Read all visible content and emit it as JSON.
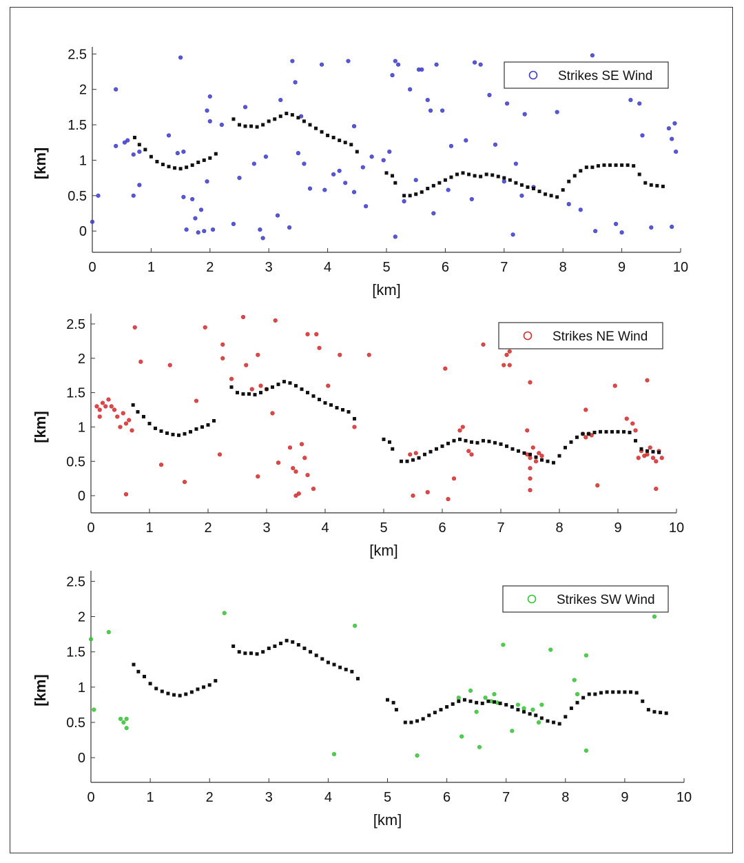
{
  "chart_data": [
    {
      "type": "scatter",
      "xlabel": "[km]",
      "ylabel": "[km]",
      "xlim": [
        0,
        10
      ],
      "ylim": [
        -0.3,
        2.6
      ],
      "xticks": [
        "0",
        "1",
        "2",
        "3",
        "4",
        "5",
        "6",
        "7",
        "8",
        "9",
        "10"
      ],
      "yticks": [
        "0",
        "0.5",
        "1",
        "1.5",
        "2",
        "2.5"
      ],
      "legend": {
        "label": "Strikes SE Wind",
        "position": "top-right",
        "color": "#3b3bc8"
      },
      "strike_color": "#3b3bc8",
      "strikes": [
        [
          0.0,
          0.13
        ],
        [
          0.1,
          0.5
        ],
        [
          0.4,
          2.0
        ],
        [
          0.4,
          1.2
        ],
        [
          0.55,
          1.25
        ],
        [
          0.6,
          1.28
        ],
        [
          0.7,
          0.5
        ],
        [
          0.7,
          1.08
        ],
        [
          0.8,
          0.65
        ],
        [
          0.8,
          1.12
        ],
        [
          1.3,
          1.35
        ],
        [
          1.45,
          1.1
        ],
        [
          1.5,
          2.45
        ],
        [
          1.55,
          1.12
        ],
        [
          1.55,
          0.48
        ],
        [
          1.6,
          0.02
        ],
        [
          1.7,
          0.45
        ],
        [
          1.75,
          0.18
        ],
        [
          1.8,
          -0.02
        ],
        [
          1.85,
          0.3
        ],
        [
          1.9,
          0.0
        ],
        [
          1.95,
          0.7
        ],
        [
          1.95,
          1.7
        ],
        [
          2.0,
          1.55
        ],
        [
          2.0,
          1.9
        ],
        [
          2.05,
          0.02
        ],
        [
          2.2,
          1.5
        ],
        [
          2.4,
          0.1
        ],
        [
          2.5,
          0.75
        ],
        [
          2.6,
          1.75
        ],
        [
          2.75,
          0.95
        ],
        [
          2.85,
          0.02
        ],
        [
          2.9,
          -0.1
        ],
        [
          2.95,
          1.05
        ],
        [
          3.15,
          0.22
        ],
        [
          3.2,
          1.85
        ],
        [
          3.35,
          0.05
        ],
        [
          3.4,
          2.4
        ],
        [
          3.45,
          2.1
        ],
        [
          3.5,
          1.1
        ],
        [
          3.55,
          1.62
        ],
        [
          3.6,
          0.95
        ],
        [
          3.7,
          0.6
        ],
        [
          3.9,
          2.35
        ],
        [
          3.95,
          0.58
        ],
        [
          4.1,
          0.8
        ],
        [
          4.2,
          0.85
        ],
        [
          4.3,
          0.68
        ],
        [
          4.35,
          2.4
        ],
        [
          4.45,
          0.55
        ],
        [
          4.45,
          1.48
        ],
        [
          4.6,
          0.9
        ],
        [
          4.65,
          0.35
        ],
        [
          4.75,
          1.05
        ],
        [
          4.95,
          1.0
        ],
        [
          5.05,
          1.12
        ],
        [
          5.1,
          2.2
        ],
        [
          5.15,
          -0.08
        ],
        [
          5.15,
          2.4
        ],
        [
          5.2,
          2.35
        ],
        [
          5.3,
          0.42
        ],
        [
          5.4,
          2.0
        ],
        [
          5.5,
          0.72
        ],
        [
          5.55,
          2.28
        ],
        [
          5.6,
          2.28
        ],
        [
          5.7,
          1.85
        ],
        [
          5.75,
          1.7
        ],
        [
          5.8,
          0.25
        ],
        [
          5.85,
          2.35
        ],
        [
          5.95,
          1.7
        ],
        [
          6.05,
          0.58
        ],
        [
          6.1,
          1.2
        ],
        [
          6.35,
          1.28
        ],
        [
          6.45,
          0.45
        ],
        [
          6.5,
          2.38
        ],
        [
          6.6,
          2.35
        ],
        [
          6.75,
          1.92
        ],
        [
          6.85,
          1.22
        ],
        [
          7.0,
          0.7
        ],
        [
          7.05,
          1.8
        ],
        [
          7.15,
          -0.05
        ],
        [
          7.2,
          0.95
        ],
        [
          7.3,
          0.5
        ],
        [
          7.35,
          1.65
        ],
        [
          7.5,
          0.62
        ],
        [
          7.65,
          2.2
        ],
        [
          7.9,
          1.68
        ],
        [
          8.1,
          0.38
        ],
        [
          8.2,
          2.35
        ],
        [
          8.3,
          0.3
        ],
        [
          8.5,
          2.48
        ],
        [
          8.55,
          0.0
        ],
        [
          8.9,
          0.1
        ],
        [
          9.0,
          -0.02
        ],
        [
          9.15,
          1.85
        ],
        [
          9.3,
          1.8
        ],
        [
          9.35,
          1.35
        ],
        [
          9.5,
          0.05
        ],
        [
          9.8,
          1.45
        ],
        [
          9.85,
          1.3
        ],
        [
          9.85,
          0.06
        ],
        [
          9.9,
          1.52
        ],
        [
          9.92,
          1.12
        ]
      ]
    },
    {
      "type": "scatter",
      "xlabel": "[km]",
      "ylabel": "[km]",
      "xlim": [
        0,
        10
      ],
      "ylim": [
        -0.25,
        2.65
      ],
      "xticks": [
        "0",
        "1",
        "2",
        "3",
        "4",
        "5",
        "6",
        "7",
        "8",
        "9",
        "10"
      ],
      "yticks": [
        "0",
        "0.5",
        "1",
        "1.5",
        "2",
        "2.5"
      ],
      "legend": {
        "label": "Strikes NE Wind",
        "position": "top-right",
        "color": "#d22a2a"
      },
      "strike_color": "#d22a2a",
      "strikes": [
        [
          0.1,
          1.3
        ],
        [
          0.15,
          1.25
        ],
        [
          0.15,
          1.15
        ],
        [
          0.2,
          1.35
        ],
        [
          0.25,
          1.3
        ],
        [
          0.3,
          1.4
        ],
        [
          0.35,
          1.3
        ],
        [
          0.4,
          1.25
        ],
        [
          0.45,
          1.15
        ],
        [
          0.5,
          1.0
        ],
        [
          0.55,
          1.2
        ],
        [
          0.6,
          1.05
        ],
        [
          0.65,
          1.1
        ],
        [
          0.7,
          0.95
        ],
        [
          0.6,
          0.02
        ],
        [
          0.75,
          2.45
        ],
        [
          0.85,
          1.95
        ],
        [
          1.2,
          0.45
        ],
        [
          1.35,
          1.9
        ],
        [
          1.6,
          0.2
        ],
        [
          1.8,
          1.38
        ],
        [
          1.95,
          2.45
        ],
        [
          2.2,
          0.6
        ],
        [
          2.25,
          2.0
        ],
        [
          2.25,
          2.2
        ],
        [
          2.4,
          1.7
        ],
        [
          2.6,
          2.6
        ],
        [
          2.65,
          1.9
        ],
        [
          2.75,
          1.55
        ],
        [
          2.85,
          2.05
        ],
        [
          2.85,
          0.28
        ],
        [
          2.9,
          1.6
        ],
        [
          3.0,
          1.55
        ],
        [
          3.1,
          1.2
        ],
        [
          3.15,
          2.55
        ],
        [
          3.2,
          0.48
        ],
        [
          3.4,
          0.7
        ],
        [
          3.45,
          0.4
        ],
        [
          3.5,
          0.35
        ],
        [
          3.5,
          0.0
        ],
        [
          3.55,
          0.03
        ],
        [
          3.6,
          0.75
        ],
        [
          3.65,
          0.55
        ],
        [
          3.7,
          0.3
        ],
        [
          3.7,
          2.35
        ],
        [
          3.8,
          0.1
        ],
        [
          3.85,
          2.35
        ],
        [
          3.9,
          2.15
        ],
        [
          4.05,
          1.6
        ],
        [
          4.25,
          2.05
        ],
        [
          4.5,
          1.0
        ],
        [
          4.75,
          2.05
        ],
        [
          5.45,
          0.6
        ],
        [
          5.5,
          0.0
        ],
        [
          5.55,
          0.62
        ],
        [
          5.75,
          0.05
        ],
        [
          6.05,
          1.85
        ],
        [
          6.1,
          -0.05
        ],
        [
          6.2,
          0.25
        ],
        [
          6.3,
          0.95
        ],
        [
          6.35,
          1.0
        ],
        [
          6.45,
          0.65
        ],
        [
          6.5,
          0.6
        ],
        [
          6.7,
          2.2
        ],
        [
          7.05,
          1.9
        ],
        [
          7.1,
          2.05
        ],
        [
          7.15,
          1.9
        ],
        [
          7.15,
          2.1
        ],
        [
          7.45,
          0.6
        ],
        [
          7.5,
          0.55
        ],
        [
          7.5,
          0.4
        ],
        [
          7.55,
          0.7
        ],
        [
          7.6,
          0.5
        ],
        [
          7.65,
          0.62
        ],
        [
          7.7,
          0.58
        ],
        [
          7.45,
          0.95
        ],
        [
          7.5,
          0.25
        ],
        [
          7.5,
          0.08
        ],
        [
          7.5,
          1.65
        ],
        [
          8.4,
          0.9
        ],
        [
          8.45,
          0.85
        ],
        [
          8.5,
          0.9
        ],
        [
          8.55,
          0.88
        ],
        [
          8.45,
          1.25
        ],
        [
          8.65,
          0.15
        ],
        [
          8.95,
          1.6
        ],
        [
          9.15,
          1.12
        ],
        [
          9.25,
          1.05
        ],
        [
          9.3,
          0.95
        ],
        [
          9.35,
          0.55
        ],
        [
          9.4,
          0.65
        ],
        [
          9.45,
          0.58
        ],
        [
          9.5,
          0.6
        ],
        [
          9.55,
          0.7
        ],
        [
          9.6,
          0.55
        ],
        [
          9.65,
          0.5
        ],
        [
          9.7,
          0.65
        ],
        [
          9.75,
          0.55
        ],
        [
          9.5,
          1.68
        ],
        [
          9.65,
          0.1
        ]
      ]
    },
    {
      "type": "scatter",
      "xlabel": "[km]",
      "ylabel": "[km]",
      "xlim": [
        0,
        10
      ],
      "ylim": [
        -0.35,
        2.65
      ],
      "xticks": [
        "0",
        "1",
        "2",
        "3",
        "4",
        "5",
        "6",
        "7",
        "8",
        "9",
        "10"
      ],
      "yticks": [
        "0",
        "0.5",
        "1",
        "1.5",
        "2",
        "2.5"
      ],
      "legend": {
        "label": "Strikes SW Wind",
        "position": "top-right",
        "color": "#35c235"
      },
      "strike_color": "#35c235",
      "strikes": [
        [
          0.0,
          1.68
        ],
        [
          0.05,
          0.68
        ],
        [
          0.3,
          1.78
        ],
        [
          0.5,
          0.55
        ],
        [
          0.55,
          0.5
        ],
        [
          0.6,
          0.55
        ],
        [
          0.6,
          0.42
        ],
        [
          2.25,
          2.05
        ],
        [
          4.1,
          0.05
        ],
        [
          4.45,
          1.87
        ],
        [
          5.5,
          0.03
        ],
        [
          6.2,
          0.85
        ],
        [
          6.25,
          0.3
        ],
        [
          6.4,
          0.95
        ],
        [
          6.5,
          0.65
        ],
        [
          6.55,
          0.15
        ],
        [
          6.65,
          0.85
        ],
        [
          6.75,
          0.8
        ],
        [
          6.8,
          0.9
        ],
        [
          6.85,
          0.78
        ],
        [
          6.95,
          1.6
        ],
        [
          7.1,
          0.38
        ],
        [
          7.2,
          0.75
        ],
        [
          7.3,
          0.7
        ],
        [
          7.45,
          0.68
        ],
        [
          7.55,
          0.5
        ],
        [
          7.6,
          0.75
        ],
        [
          7.75,
          1.53
        ],
        [
          8.15,
          1.1
        ],
        [
          8.2,
          0.9
        ],
        [
          8.35,
          1.45
        ],
        [
          8.35,
          0.1
        ],
        [
          9.5,
          2.0
        ]
      ]
    }
  ],
  "coastline": [
    [
      [
        0.72,
        1.32
      ],
      [
        0.8,
        1.22
      ],
      [
        0.9,
        1.15
      ],
      [
        1.0,
        1.05
      ],
      [
        1.1,
        0.98
      ],
      [
        1.2,
        0.94
      ],
      [
        1.3,
        0.91
      ],
      [
        1.4,
        0.89
      ],
      [
        1.5,
        0.88
      ],
      [
        1.6,
        0.9
      ],
      [
        1.7,
        0.93
      ],
      [
        1.8,
        0.97
      ],
      [
        1.9,
        1.0
      ],
      [
        2.0,
        1.03
      ],
      [
        2.1,
        1.09
      ]
    ],
    [
      [
        2.4,
        1.58
      ],
      [
        2.5,
        1.5
      ],
      [
        2.6,
        1.48
      ],
      [
        2.7,
        1.48
      ],
      [
        2.8,
        1.47
      ],
      [
        2.9,
        1.5
      ],
      [
        3.0,
        1.55
      ],
      [
        3.1,
        1.58
      ],
      [
        3.2,
        1.62
      ],
      [
        3.3,
        1.66
      ],
      [
        3.4,
        1.64
      ],
      [
        3.5,
        1.6
      ],
      [
        3.6,
        1.55
      ],
      [
        3.7,
        1.5
      ],
      [
        3.8,
        1.45
      ],
      [
        3.9,
        1.4
      ],
      [
        4.0,
        1.35
      ],
      [
        4.1,
        1.32
      ],
      [
        4.2,
        1.28
      ],
      [
        4.3,
        1.25
      ],
      [
        4.4,
        1.22
      ],
      [
        4.5,
        1.12
      ]
    ],
    [
      [
        5.0,
        0.82
      ],
      [
        5.1,
        0.78
      ],
      [
        5.15,
        0.68
      ],
      [
        5.3,
        0.5
      ],
      [
        5.4,
        0.5
      ],
      [
        5.5,
        0.52
      ],
      [
        5.6,
        0.55
      ],
      [
        5.7,
        0.6
      ],
      [
        5.8,
        0.64
      ],
      [
        5.9,
        0.68
      ],
      [
        6.0,
        0.72
      ],
      [
        6.1,
        0.76
      ],
      [
        6.2,
        0.8
      ],
      [
        6.3,
        0.82
      ],
      [
        6.4,
        0.8
      ],
      [
        6.5,
        0.78
      ],
      [
        6.6,
        0.77
      ],
      [
        6.7,
        0.8
      ],
      [
        6.8,
        0.79
      ],
      [
        6.9,
        0.77
      ],
      [
        7.0,
        0.75
      ],
      [
        7.1,
        0.72
      ],
      [
        7.2,
        0.68
      ],
      [
        7.3,
        0.65
      ],
      [
        7.4,
        0.62
      ],
      [
        7.5,
        0.6
      ],
      [
        7.6,
        0.56
      ],
      [
        7.7,
        0.52
      ],
      [
        7.8,
        0.5
      ],
      [
        7.9,
        0.48
      ],
      [
        8.0,
        0.58
      ],
      [
        8.1,
        0.7
      ],
      [
        8.2,
        0.78
      ],
      [
        8.3,
        0.85
      ],
      [
        8.4,
        0.9
      ],
      [
        8.5,
        0.9
      ],
      [
        8.6,
        0.92
      ],
      [
        8.7,
        0.93
      ],
      [
        8.8,
        0.93
      ],
      [
        8.9,
        0.93
      ],
      [
        9.0,
        0.93
      ],
      [
        9.1,
        0.93
      ],
      [
        9.2,
        0.92
      ],
      [
        9.3,
        0.8
      ],
      [
        9.4,
        0.68
      ],
      [
        9.5,
        0.65
      ],
      [
        9.6,
        0.64
      ],
      [
        9.7,
        0.63
      ]
    ]
  ],
  "coastline_color": "#111111"
}
